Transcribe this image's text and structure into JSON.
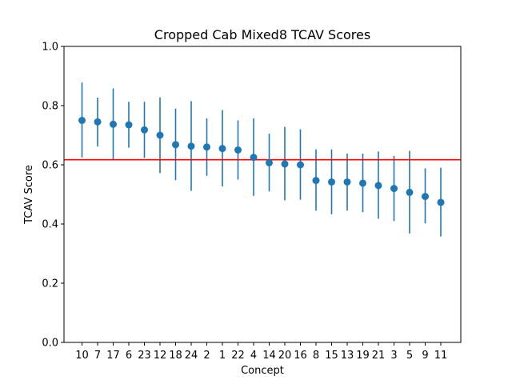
{
  "chart_data": {
    "type": "scatter",
    "title": "Cropped Cab Mixed8 TCAV Scores",
    "xlabel": "Concept",
    "ylabel": "TCAV Score",
    "ylim": [
      0,
      1.0
    ],
    "yticks": [
      0.0,
      0.2,
      0.4,
      0.6,
      0.8,
      1.0
    ],
    "ytick_labels": [
      "0.0",
      "0.2",
      "0.4",
      "0.6",
      "0.8",
      "1.0"
    ],
    "grid": false,
    "reference_line": {
      "y": 0.617,
      "color": "#ff0000"
    },
    "series_color": "#1f77b4",
    "categories": [
      "10",
      "7",
      "17",
      "6",
      "23",
      "12",
      "18",
      "24",
      "2",
      "1",
      "22",
      "4",
      "14",
      "20",
      "16",
      "8",
      "15",
      "13",
      "19",
      "21",
      "3",
      "5",
      "9",
      "11"
    ],
    "values": [
      0.75,
      0.745,
      0.737,
      0.735,
      0.718,
      0.7,
      0.668,
      0.663,
      0.66,
      0.655,
      0.65,
      0.625,
      0.607,
      0.603,
      0.6,
      0.547,
      0.542,
      0.542,
      0.538,
      0.53,
      0.52,
      0.507,
      0.493,
      0.473
    ],
    "error_low": [
      0.625,
      0.662,
      0.618,
      0.658,
      0.623,
      0.572,
      0.548,
      0.512,
      0.563,
      0.527,
      0.55,
      0.495,
      0.51,
      0.48,
      0.482,
      0.445,
      0.433,
      0.445,
      0.44,
      0.418,
      0.41,
      0.368,
      0.402,
      0.358
    ],
    "error_high": [
      0.878,
      0.827,
      0.858,
      0.813,
      0.813,
      0.828,
      0.79,
      0.815,
      0.757,
      0.785,
      0.75,
      0.757,
      0.705,
      0.728,
      0.72,
      0.652,
      0.652,
      0.638,
      0.638,
      0.645,
      0.63,
      0.647,
      0.588,
      0.59
    ]
  }
}
